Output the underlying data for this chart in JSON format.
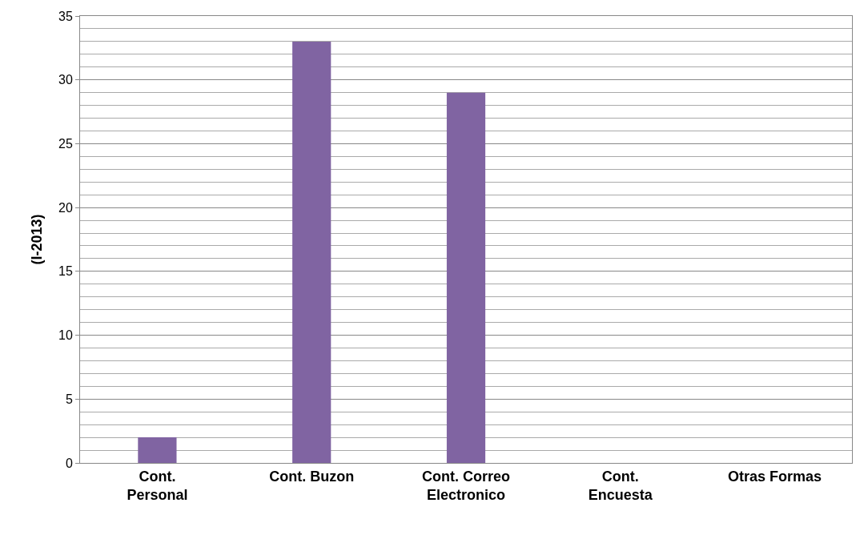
{
  "chart_data": {
    "type": "bar",
    "ylabel": "(I-2013)",
    "categories": [
      "Cont. Personal",
      "Cont. Buzon",
      "Cont. Correo Electronico",
      "Cont. Encuesta",
      "Otras Formas"
    ],
    "values": [
      2,
      33,
      29,
      0,
      0
    ],
    "color": "#8064a2",
    "ylim": [
      0,
      35
    ],
    "yticks": [
      0,
      5,
      10,
      15,
      20,
      25,
      30,
      35
    ],
    "grid": "y"
  }
}
